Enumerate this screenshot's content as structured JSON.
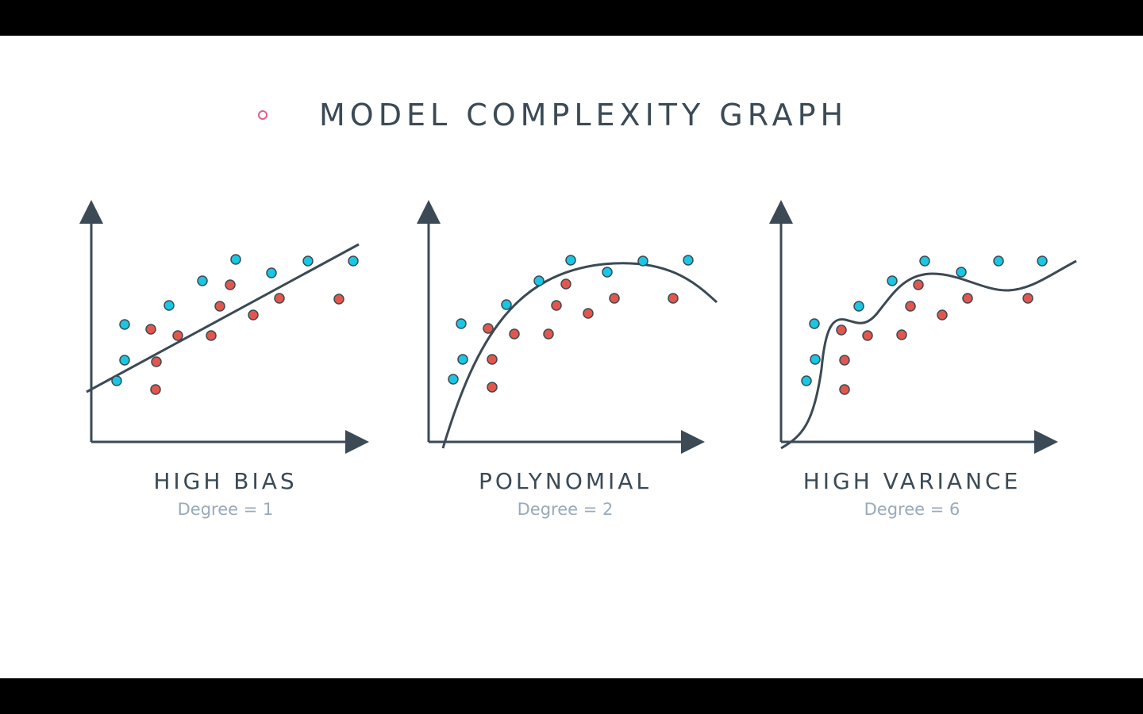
{
  "slide": {
    "title": "MODEL COMPLEXITY GRAPH",
    "bullet_color": "#e85d8a"
  },
  "colors": {
    "axis": "#3b4a55",
    "blue_point": "#19c6e3",
    "red_point": "#e2574c",
    "title_text": "#3b4a55",
    "subtitle_text": "#9aaab8"
  },
  "panels": [
    {
      "title": "HIGH BIAS",
      "subtitle": "Degree = 1",
      "fit": "line"
    },
    {
      "title": "POLYNOMIAL",
      "subtitle": "Degree = 2",
      "fit": "quadratic"
    },
    {
      "title": "HIGH VARIANCE",
      "subtitle": "Degree = 6",
      "fit": "wiggly"
    }
  ]
}
